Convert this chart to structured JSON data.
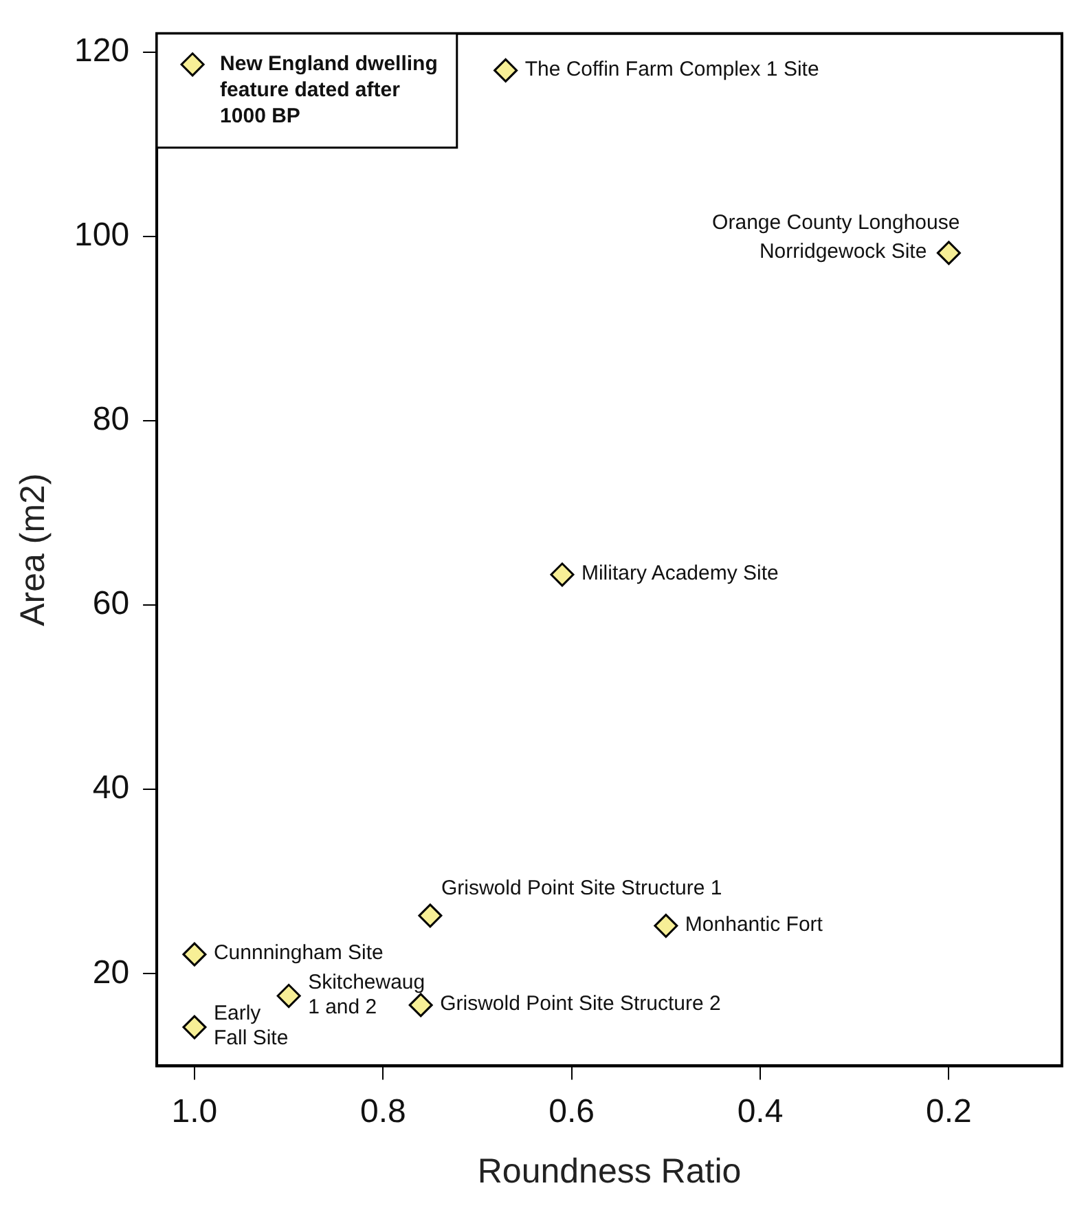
{
  "chart_data": {
    "type": "scatter",
    "xlabel": "Roundness Ratio",
    "ylabel": "Area (m2)",
    "xlim": [
      1.04,
      0.08
    ],
    "xticks": [
      {
        "value": 1,
        "label": "1.0"
      },
      0.8,
      0.6,
      0.4,
      0.2
    ],
    "ylim": [
      10,
      122
    ],
    "yticks": [
      20,
      40,
      60,
      80,
      100,
      120
    ],
    "grid": false,
    "legend": "top left",
    "marker": "diamond",
    "series": [
      {
        "name": "New England dwelling feature dated after 1000 BP",
        "color": "#f7ef96",
        "x": [
          0.67,
          0.2,
          0.61,
          0.75,
          0.5,
          1.0,
          0.9,
          0.76,
          1.0
        ],
        "values": [
          118,
          98.2,
          63.3,
          26.3,
          25.2,
          22.1,
          17.6,
          16.6,
          14.2
        ]
      }
    ],
    "annotations": [
      {
        "text": "The Coffin Farm Complex 1 Site",
        "x": 0.67,
        "y": 118
      },
      {
        "text": "Orange County Longhouse",
        "x": 0.2,
        "y": 98.2
      },
      {
        "text": "Norridgewock Site",
        "x": 0.2,
        "y": 98.2
      },
      {
        "text": "Military Academy Site",
        "x": 0.61,
        "y": 63.3
      },
      {
        "text": "Griswold Point Site Structure 1",
        "x": 0.75,
        "y": 26.3
      },
      {
        "text": "Monhantic Fort",
        "x": 0.5,
        "y": 25.2
      },
      {
        "text": "Cunnningham Site",
        "x": 1.0,
        "y": 22.1
      },
      {
        "text": "Skitchewaug 1 and 2",
        "x": 0.9,
        "y": 17.6
      },
      {
        "text": "Griswold Point Site Structure 2",
        "x": 0.76,
        "y": 16.6
      },
      {
        "text": "Early Fall Site",
        "x": 1.0,
        "y": 14.2
      }
    ]
  }
}
